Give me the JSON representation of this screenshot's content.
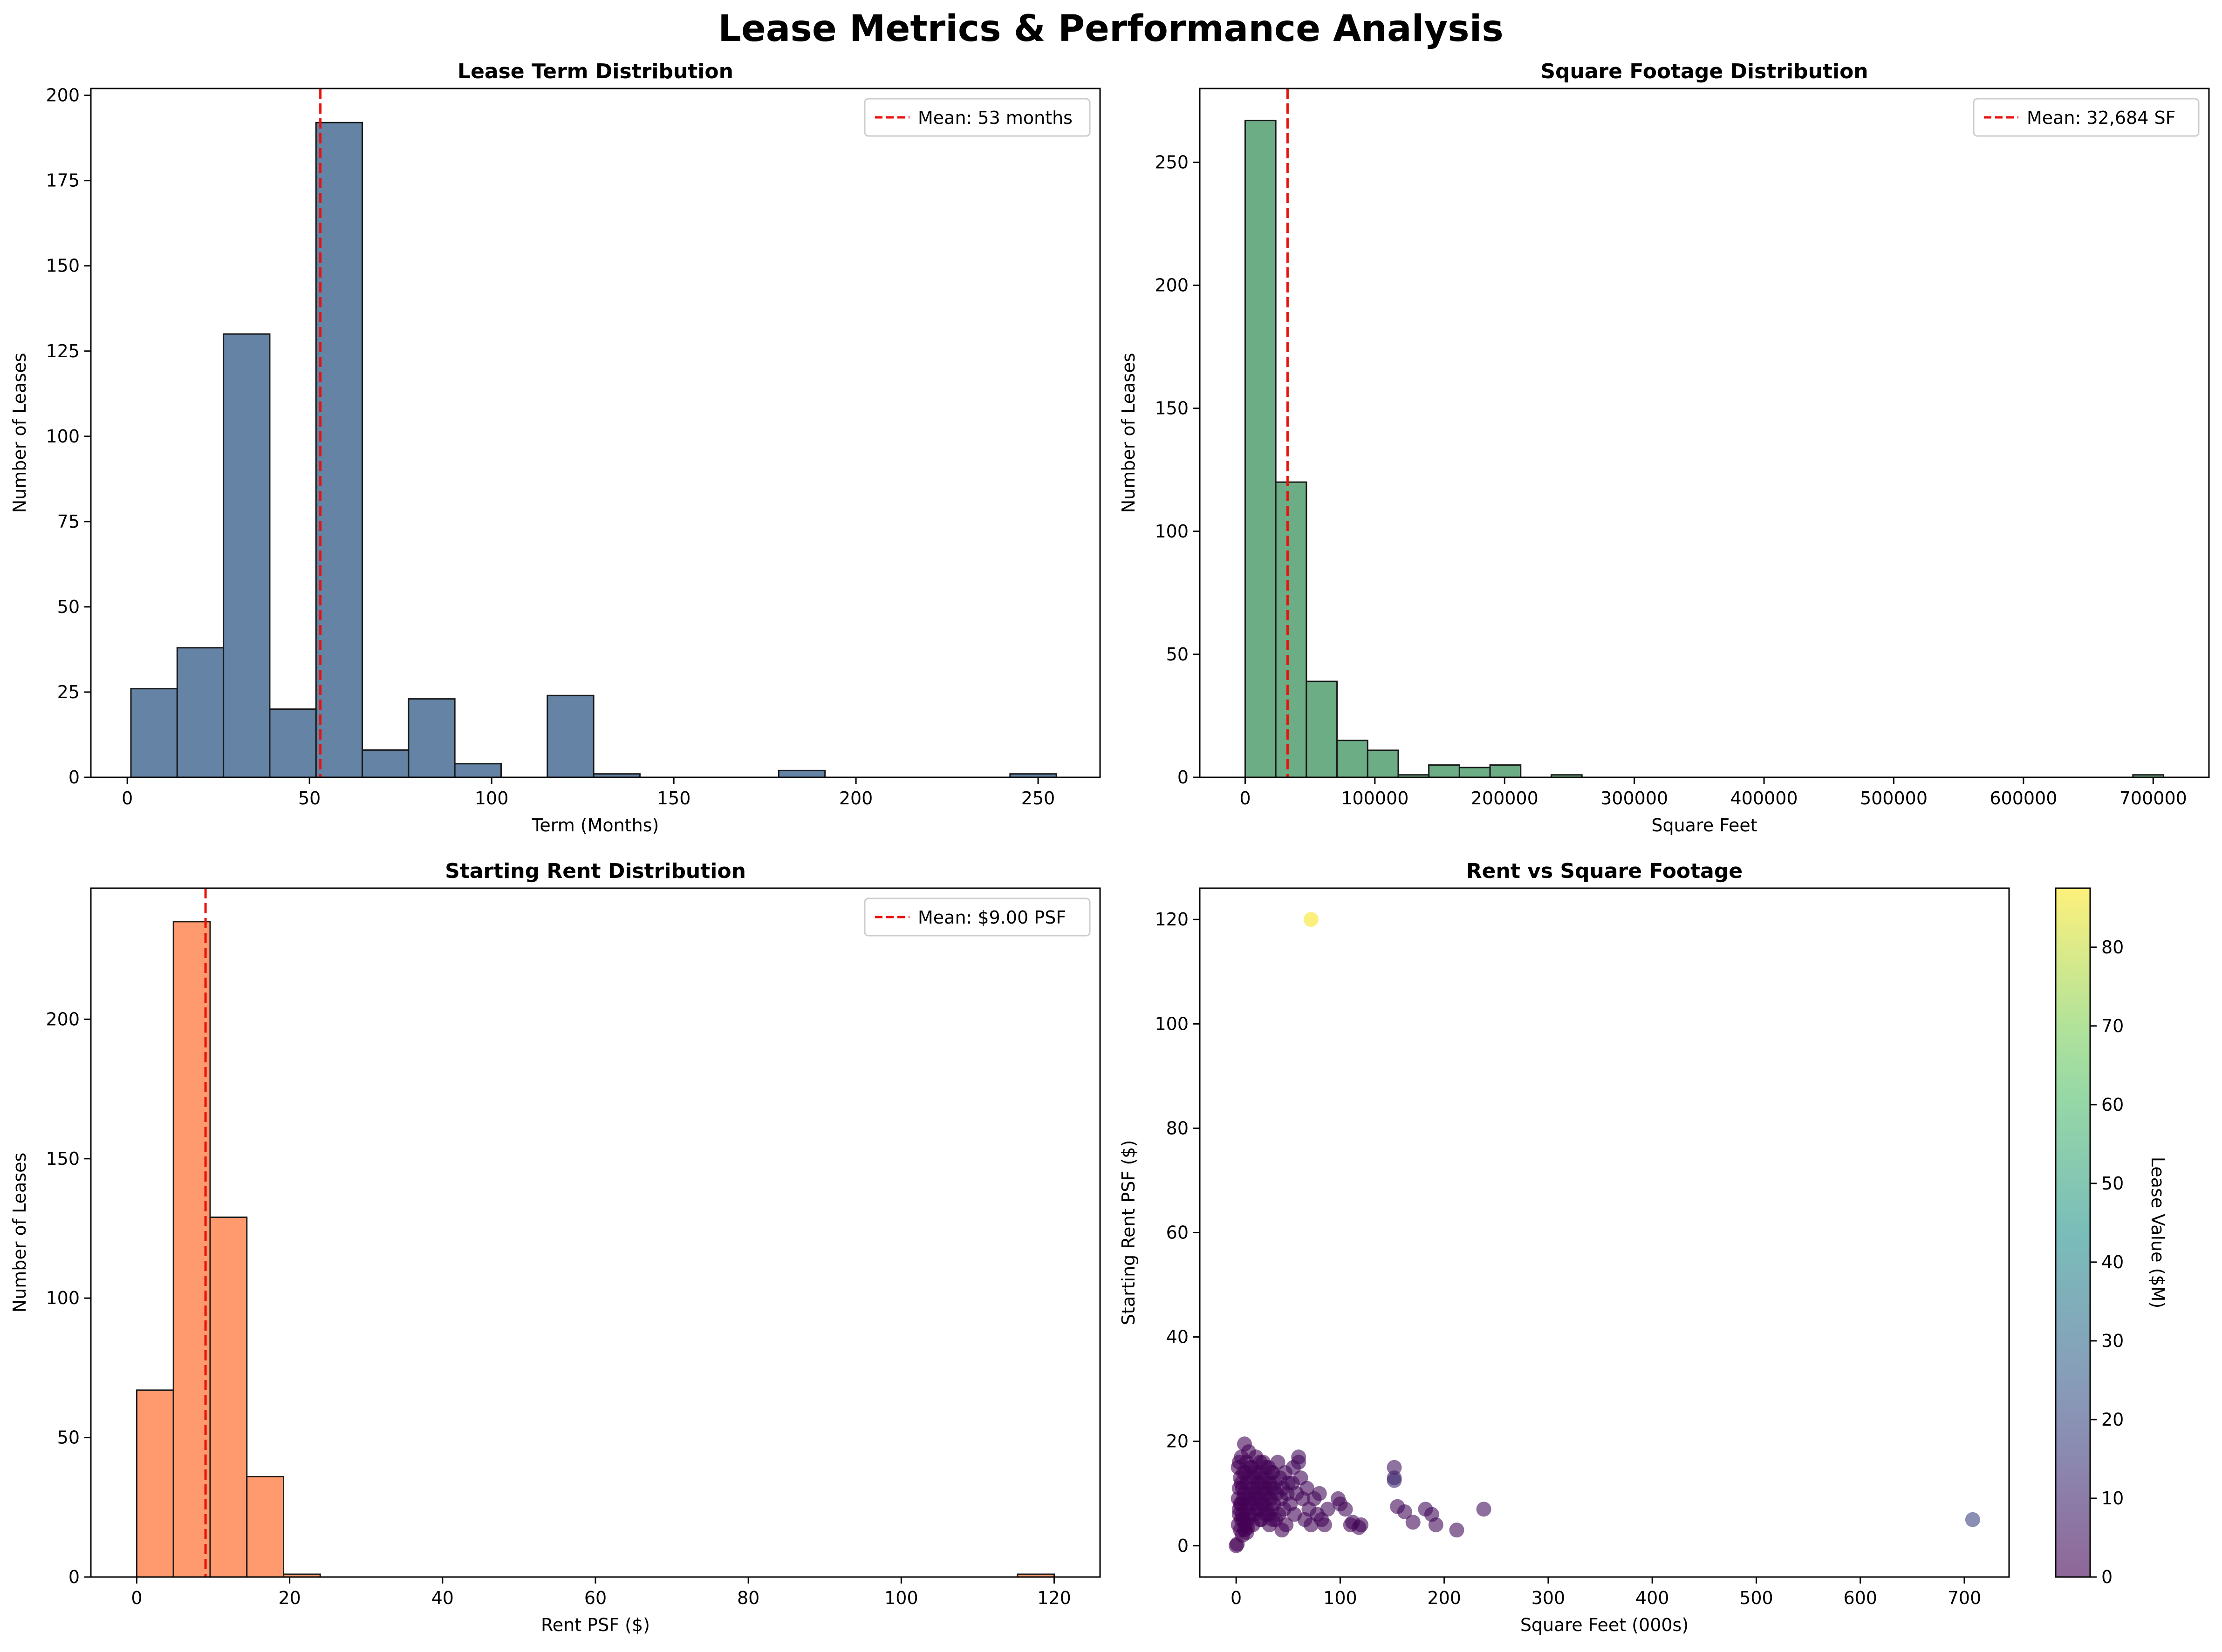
{
  "figure": {
    "title": "Lease Metrics & Performance Analysis"
  },
  "chart_data": [
    {
      "type": "bar",
      "title": "Lease Term Distribution",
      "xlabel": "Term (Months)",
      "ylabel": "Number of Leases",
      "xlim": [
        -10,
        267
      ],
      "ylim": [
        0,
        202
      ],
      "xticks": [
        0,
        50,
        100,
        150,
        200,
        250
      ],
      "yticks": [
        0,
        25,
        50,
        75,
        100,
        125,
        150,
        175,
        200
      ],
      "bin_edges": [
        1,
        13.7,
        26.4,
        39.1,
        51.8,
        64.5,
        77.2,
        89.9,
        102.6,
        115.3,
        128,
        140.7,
        153.4,
        166.1,
        178.8,
        191.5,
        204.2,
        216.9,
        229.6,
        242.3,
        255
      ],
      "counts": [
        26,
        38,
        130,
        20,
        192,
        8,
        23,
        4,
        0,
        24,
        1,
        0,
        0,
        0,
        2,
        0,
        0,
        0,
        0,
        1
      ],
      "bar_color": "#4e7298",
      "mean": 53,
      "mean_label": "Mean: 53 months",
      "grid": false,
      "legend": "top-right"
    },
    {
      "type": "bar",
      "title": "Square Footage Distribution",
      "xlabel": "Square Feet",
      "ylabel": "Number of Leases",
      "xlim": [
        -35000,
        743000
      ],
      "ylim": [
        0,
        280
      ],
      "xticks": [
        0,
        100000,
        200000,
        300000,
        400000,
        500000,
        600000,
        700000
      ],
      "yticks": [
        0,
        50,
        100,
        150,
        200,
        250
      ],
      "bin_edges": [
        0,
        23600,
        47200,
        70800,
        94400,
        118000,
        141600,
        165200,
        188800,
        212400,
        236000,
        259600,
        283200,
        306800,
        330400,
        354000,
        377600,
        401200,
        424800,
        448400,
        472000,
        495600,
        519200,
        542800,
        566400,
        590000,
        613600,
        637200,
        660800,
        684400,
        708000
      ],
      "counts": [
        267,
        120,
        39,
        15,
        11,
        1,
        5,
        4,
        5,
        0,
        1,
        0,
        0,
        0,
        0,
        0,
        0,
        0,
        0,
        0,
        0,
        0,
        0,
        0,
        0,
        0,
        0,
        0,
        0,
        1
      ],
      "bar_color": "#59a275",
      "mean": 32684,
      "mean_label": "Mean: 32,684 SF",
      "grid": false,
      "legend": "top-right"
    },
    {
      "type": "bar",
      "title": "Starting Rent Distribution",
      "xlabel": "Rent PSF ($)",
      "ylabel": "Number of Leases",
      "xlim": [
        -6,
        126
      ],
      "ylim": [
        0,
        247
      ],
      "xticks": [
        0,
        20,
        40,
        60,
        80,
        100,
        120
      ],
      "yticks": [
        0,
        50,
        100,
        150,
        200
      ],
      "bin_edges": [
        0,
        4.8,
        9.6,
        14.4,
        19.2,
        24,
        28.8,
        33.6,
        38.4,
        43.2,
        48,
        52.8,
        57.6,
        62.4,
        67.2,
        72,
        76.8,
        81.6,
        86.4,
        91.2,
        96,
        100.8,
        105.6,
        110.4,
        115.2,
        120
      ],
      "counts": [
        67,
        235,
        129,
        36,
        1,
        0,
        0,
        0,
        0,
        0,
        0,
        0,
        0,
        0,
        0,
        0,
        0,
        0,
        0,
        0,
        0,
        0,
        0,
        0,
        1
      ],
      "bar_color": "#ff8c5a",
      "mean": 9.0,
      "mean_label": "Mean: $9.00 PSF",
      "grid": false,
      "legend": "top-right"
    },
    {
      "type": "scatter",
      "title": "Rent vs Square Footage",
      "xlabel": "Square Feet (000s)",
      "ylabel": "Starting Rent PSF ($)",
      "xlim": [
        -35,
        743
      ],
      "ylim": [
        -6,
        126
      ],
      "xticks": [
        0,
        100,
        200,
        300,
        400,
        500,
        600,
        700
      ],
      "yticks": [
        0,
        20,
        40,
        60,
        80,
        100,
        120
      ],
      "colorbar_label": "Lease Value ($M)",
      "colorbar_range": [
        0,
        87.5
      ],
      "colorbar_ticks": [
        0,
        10,
        20,
        30,
        40,
        50,
        60,
        70,
        80
      ],
      "colormap": "viridis",
      "points": [
        [
          0,
          0,
          0
        ],
        [
          1,
          0.3,
          0
        ],
        [
          2,
          15,
          0.5
        ],
        [
          3,
          16,
          0.6
        ],
        [
          5,
          17,
          0.7
        ],
        [
          8,
          19.5,
          0.8
        ],
        [
          12,
          18,
          0.9
        ],
        [
          4,
          13,
          0.4
        ],
        [
          6,
          11,
          0.4
        ],
        [
          7,
          9,
          0.4
        ],
        [
          3,
          7,
          0.3
        ],
        [
          5,
          5,
          0.3
        ],
        [
          9,
          14,
          0.5
        ],
        [
          10,
          12,
          0.5
        ],
        [
          11,
          8,
          0.5
        ],
        [
          13,
          6,
          0.5
        ],
        [
          14,
          10,
          0.6
        ],
        [
          15,
          15,
          0.7
        ],
        [
          16,
          4,
          0.5
        ],
        [
          17,
          13,
          0.8
        ],
        [
          18,
          9,
          0.7
        ],
        [
          19,
          17,
          0.9
        ],
        [
          20,
          11,
          0.8
        ],
        [
          21,
          7,
          0.6
        ],
        [
          22,
          14,
          0.9
        ],
        [
          23,
          5,
          0.6
        ],
        [
          24,
          12,
          1.0
        ],
        [
          25,
          8,
          0.8
        ],
        [
          26,
          16,
          1.2
        ],
        [
          27,
          10,
          1.0
        ],
        [
          28,
          6,
          0.8
        ],
        [
          29,
          13,
          1.1
        ],
        [
          30,
          9,
          1.0
        ],
        [
          31,
          15,
          1.3
        ],
        [
          32,
          4,
          0.7
        ],
        [
          33,
          11,
          1.2
        ],
        [
          34,
          7,
          1.0
        ],
        [
          35,
          14,
          1.4
        ],
        [
          36,
          8,
          1.1
        ],
        [
          37,
          12,
          1.3
        ],
        [
          38,
          5,
          0.9
        ],
        [
          39,
          10,
          1.2
        ],
        [
          40,
          16,
          1.6
        ],
        [
          41,
          6,
          1.0
        ],
        [
          42,
          13,
          1.5
        ],
        [
          43,
          9,
          1.3
        ],
        [
          44,
          3,
          0.7
        ],
        [
          45,
          11,
          1.5
        ],
        [
          46,
          7,
          1.2
        ],
        [
          47,
          14,
          1.7
        ],
        [
          48,
          4,
          0.9
        ],
        [
          49,
          10,
          1.5
        ],
        [
          50,
          12,
          1.7
        ],
        [
          2,
          9,
          0.3
        ],
        [
          3,
          11,
          0.3
        ],
        [
          4,
          8,
          0.3
        ],
        [
          5,
          12,
          0.4
        ],
        [
          6,
          6,
          0.3
        ],
        [
          7,
          14,
          0.5
        ],
        [
          8,
          10,
          0.4
        ],
        [
          9,
          7,
          0.4
        ],
        [
          10,
          16,
          0.6
        ],
        [
          11,
          5,
          0.4
        ],
        [
          12,
          13,
          0.6
        ],
        [
          13,
          9,
          0.5
        ],
        [
          14,
          15,
          0.7
        ],
        [
          15,
          8,
          0.6
        ],
        [
          16,
          11,
          0.7
        ],
        [
          17,
          6,
          0.5
        ],
        [
          18,
          14,
          0.8
        ],
        [
          19,
          10,
          0.7
        ],
        [
          20,
          7,
          0.6
        ],
        [
          21,
          12,
          0.8
        ],
        [
          22,
          9,
          0.8
        ],
        [
          23,
          16,
          1.0
        ],
        [
          24,
          5,
          0.6
        ],
        [
          25,
          13,
          1.0
        ],
        [
          26,
          8,
          0.8
        ],
        [
          27,
          11,
          1.0
        ],
        [
          28,
          15,
          1.2
        ],
        [
          29,
          7,
          0.9
        ],
        [
          30,
          10,
          1.0
        ],
        [
          31,
          6,
          0.8
        ],
        [
          32,
          12,
          1.1
        ],
        [
          33,
          9,
          1.0
        ],
        [
          34,
          14,
          1.3
        ],
        [
          35,
          5,
          0.8
        ],
        [
          36,
          11,
          1.2
        ],
        [
          2,
          4,
          0.1
        ],
        [
          4,
          3,
          0.1
        ],
        [
          6,
          2,
          0.1
        ],
        [
          8,
          3,
          0.2
        ],
        [
          10,
          2.5,
          0.2
        ],
        [
          3,
          6,
          0.2
        ],
        [
          5,
          8,
          0.3
        ],
        [
          7,
          5,
          0.3
        ],
        [
          9,
          4,
          0.3
        ],
        [
          11,
          3.5,
          0.3
        ],
        [
          52,
          8,
          1.5
        ],
        [
          54,
          12,
          1.9
        ],
        [
          55,
          15,
          2.3
        ],
        [
          56,
          6,
          1.3
        ],
        [
          58,
          10,
          1.9
        ],
        [
          60,
          17,
          2.8
        ],
        [
          60,
          16,
          2.6
        ],
        [
          62,
          13,
          2.4
        ],
        [
          64,
          9,
          1.9
        ],
        [
          66,
          5,
          1.4
        ],
        [
          68,
          11,
          2.2
        ],
        [
          70,
          7,
          1.8
        ],
        [
          72,
          4,
          1.3
        ],
        [
          75,
          9,
          2.1
        ],
        [
          78,
          6,
          1.7
        ],
        [
          80,
          10,
          2.4
        ],
        [
          82,
          5,
          1.6
        ],
        [
          85,
          4,
          1.5
        ],
        [
          88,
          7,
          2.0
        ],
        [
          98,
          9,
          2.5
        ],
        [
          100,
          8,
          2.4
        ],
        [
          105,
          7,
          2.3
        ],
        [
          110,
          4,
          1.6
        ],
        [
          112,
          4.5,
          1.7
        ],
        [
          118,
          3.5,
          1.5
        ],
        [
          120,
          4,
          1.6
        ],
        [
          152,
          15,
          5
        ],
        [
          152,
          13,
          8
        ],
        [
          152,
          12.5,
          12
        ],
        [
          155,
          7.5,
          3
        ],
        [
          162,
          6.5,
          3
        ],
        [
          170,
          4.5,
          2.5
        ],
        [
          182,
          7,
          3.5
        ],
        [
          188,
          6,
          3
        ],
        [
          192,
          4,
          2.5
        ],
        [
          212,
          3,
          2.5
        ],
        [
          238,
          7,
          4
        ],
        [
          72,
          120,
          87
        ],
        [
          708,
          5,
          18
        ]
      ],
      "grid": false
    }
  ]
}
